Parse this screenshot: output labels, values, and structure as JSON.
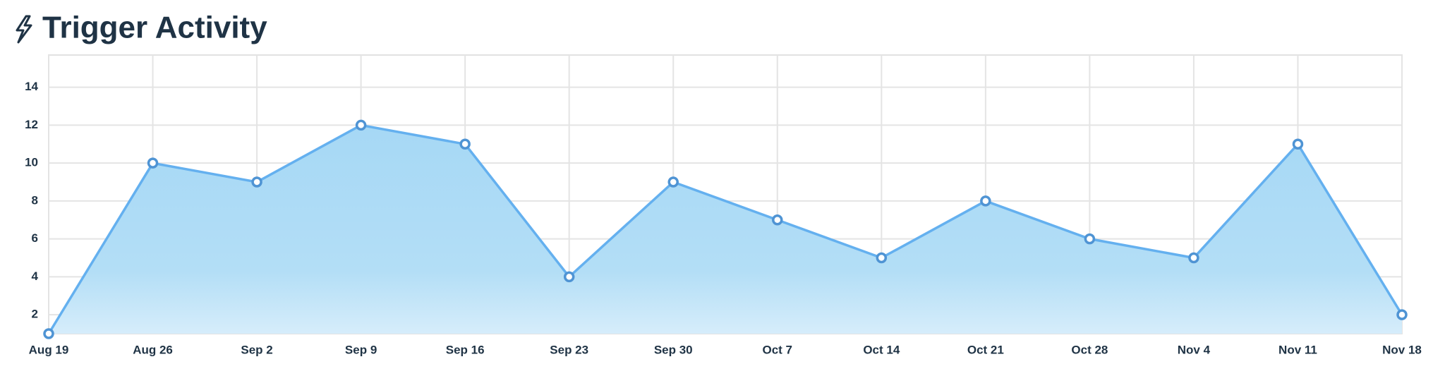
{
  "chart_data": {
    "type": "area",
    "title": "Trigger Activity",
    "categories": [
      "Aug 19",
      "Aug 26",
      "Sep 2",
      "Sep 9",
      "Sep 16",
      "Sep 23",
      "Sep 30",
      "Oct 7",
      "Oct 14",
      "Oct 21",
      "Oct 28",
      "Nov 4",
      "Nov 11",
      "Nov 18"
    ],
    "values": [
      1,
      10,
      9,
      12,
      11,
      4,
      9,
      7,
      5,
      8,
      6,
      5,
      11,
      2
    ],
    "color": "#64b0ef",
    "ylim": [
      1,
      15.7
    ],
    "yticks": [
      2,
      4,
      6,
      8,
      10,
      12,
      14
    ],
    "grid": true
  }
}
